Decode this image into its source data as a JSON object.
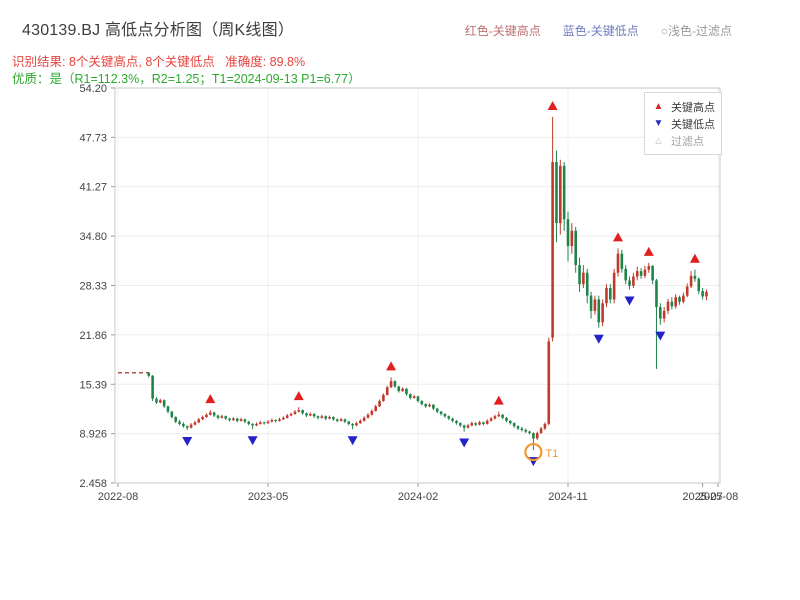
{
  "header": {
    "title": "430139.BJ 高低点分析图（周K线图）",
    "legend_inline": [
      {
        "label": "红色-关键高点",
        "color": "#bc6f6f"
      },
      {
        "label": "蓝色-关键低点",
        "color": "#6f7dbc"
      },
      {
        "label": "○浅色-过滤点",
        "color": "#9b9b9b"
      }
    ],
    "result_line": "识别结果: 8个关键高点, 8个关键低点   准确度: 89.8%",
    "result_color": "#e8433f",
    "quality_line": "优质：是（R1=112.3%，R2=1.25；T1=2024-09-13 P1=6.77）",
    "quality_color": "#2eaa2e",
    "metrics": {
      "key_high_count": 8,
      "key_low_count": 8,
      "accuracy": "89.8%",
      "R1": "112.3%",
      "R2": "1.25",
      "T1": "2024-09-13",
      "P1": "6.77"
    }
  },
  "legend_box": {
    "items": [
      {
        "label": "关键高点",
        "glyph": "▲",
        "color": "#d62728",
        "text_color": "#3c3c3c"
      },
      {
        "label": "关键低点",
        "glyph": "▼",
        "color": "#2a2ab8",
        "text_color": "#3c3c3c"
      },
      {
        "label": "过滤点",
        "glyph": "△",
        "color": "#b5b5b5",
        "text_color": "#a0a0a0"
      }
    ]
  },
  "chart_data": {
    "type": "candlestick",
    "timeframe": "weekly",
    "symbol": "430139.BJ",
    "title": "430139.BJ 高低点分析图（周K线图）",
    "y_range": [
      2.458,
      54.2
    ],
    "y_ticks": [
      {
        "v": 54.2,
        "label": "54.20"
      },
      {
        "v": 47.73,
        "label": "47.73"
      },
      {
        "v": 41.27,
        "label": "41.27"
      },
      {
        "v": 34.8,
        "label": "34.80"
      },
      {
        "v": 28.33,
        "label": "28.33"
      },
      {
        "v": 21.86,
        "label": "21.86"
      },
      {
        "v": 15.39,
        "label": "15.39"
      },
      {
        "v": 8.926,
        "label": "8.926"
      },
      {
        "v": 2.458,
        "label": "2.458"
      }
    ],
    "x_ticks": [
      {
        "week": 0,
        "label": "2022-08",
        "grid": true
      },
      {
        "week": 39,
        "label": "2023-05",
        "grid": true
      },
      {
        "week": 78,
        "label": "2024-02",
        "grid": true
      },
      {
        "week": 117,
        "label": "2024-11",
        "grid": true
      },
      {
        "week": 152,
        "label": "2025-07",
        "grid": false
      },
      {
        "week": 156,
        "label": "2025-08",
        "grid": true
      }
    ],
    "pre_listing_line": {
      "from_week": 0,
      "to_week": 8,
      "price": 16.9,
      "style": "dashed"
    },
    "candles": [
      [
        8,
        16.9,
        17.0,
        16.3,
        16.5
      ],
      [
        9,
        16.5,
        16.6,
        13.2,
        13.5
      ],
      [
        10,
        13.5,
        13.7,
        12.8,
        13.0
      ],
      [
        11,
        13.0,
        13.5,
        12.9,
        13.3
      ],
      [
        12,
        13.3,
        13.4,
        12.3,
        12.5
      ],
      [
        13,
        12.5,
        12.6,
        11.6,
        11.8
      ],
      [
        14,
        11.8,
        11.9,
        10.9,
        11.1
      ],
      [
        15,
        11.1,
        11.2,
        10.3,
        10.5
      ],
      [
        16,
        10.5,
        10.7,
        10.0,
        10.2
      ],
      [
        17,
        10.2,
        10.4,
        9.7,
        9.9
      ],
      [
        18,
        9.9,
        10.0,
        9.4,
        9.7
      ],
      [
        19,
        9.7,
        10.3,
        9.6,
        10.1
      ],
      [
        20,
        10.1,
        10.6,
        10.0,
        10.4
      ],
      [
        21,
        10.4,
        11.0,
        10.3,
        10.8
      ],
      [
        22,
        10.8,
        11.3,
        10.7,
        11.1
      ],
      [
        23,
        11.1,
        11.6,
        11.0,
        11.4
      ],
      [
        24,
        11.4,
        12.0,
        11.3,
        11.7
      ],
      [
        25,
        11.7,
        11.8,
        11.1,
        11.3
      ],
      [
        26,
        11.3,
        11.4,
        10.8,
        11.0
      ],
      [
        27,
        11.0,
        11.4,
        10.9,
        11.2
      ],
      [
        28,
        11.2,
        11.3,
        10.7,
        10.9
      ],
      [
        29,
        10.9,
        11.0,
        10.5,
        10.7
      ],
      [
        30,
        10.7,
        11.1,
        10.6,
        10.9
      ],
      [
        31,
        10.9,
        11.0,
        10.4,
        10.6
      ],
      [
        32,
        10.6,
        11.0,
        10.5,
        10.8
      ],
      [
        33,
        10.8,
        10.9,
        10.3,
        10.5
      ],
      [
        34,
        10.5,
        10.6,
        10.0,
        10.2
      ],
      [
        35,
        10.2,
        10.3,
        9.5,
        10.0
      ],
      [
        36,
        10.0,
        10.4,
        9.9,
        10.2
      ],
      [
        37,
        10.2,
        10.6,
        10.1,
        10.4
      ],
      [
        38,
        10.4,
        10.5,
        10.1,
        10.3
      ],
      [
        39,
        10.3,
        10.7,
        10.2,
        10.5
      ],
      [
        40,
        10.5,
        10.9,
        10.4,
        10.7
      ],
      [
        41,
        10.7,
        10.8,
        10.4,
        10.6
      ],
      [
        42,
        10.6,
        11.0,
        10.5,
        10.8
      ],
      [
        43,
        10.8,
        11.2,
        10.7,
        11.0
      ],
      [
        44,
        11.0,
        11.5,
        10.9,
        11.3
      ],
      [
        45,
        11.3,
        11.7,
        11.2,
        11.5
      ],
      [
        46,
        11.5,
        12.0,
        11.4,
        11.8
      ],
      [
        47,
        11.8,
        12.4,
        11.7,
        12.0
      ],
      [
        48,
        12.0,
        12.1,
        11.4,
        11.6
      ],
      [
        49,
        11.6,
        11.7,
        11.1,
        11.3
      ],
      [
        50,
        11.3,
        11.7,
        11.2,
        11.5
      ],
      [
        51,
        11.5,
        11.6,
        11.0,
        11.2
      ],
      [
        52,
        11.2,
        11.3,
        10.8,
        11.0
      ],
      [
        53,
        11.0,
        11.4,
        10.9,
        11.2
      ],
      [
        54,
        11.2,
        11.3,
        10.7,
        10.9
      ],
      [
        55,
        10.9,
        11.3,
        10.8,
        11.1
      ],
      [
        56,
        11.1,
        11.2,
        10.6,
        10.8
      ],
      [
        57,
        10.8,
        10.9,
        10.4,
        10.6
      ],
      [
        58,
        10.6,
        11.0,
        10.5,
        10.8
      ],
      [
        59,
        10.8,
        10.9,
        10.3,
        10.5
      ],
      [
        60,
        10.5,
        10.6,
        10.0,
        10.2
      ],
      [
        61,
        10.2,
        10.3,
        9.5,
        10.0
      ],
      [
        62,
        10.0,
        10.5,
        9.9,
        10.3
      ],
      [
        63,
        10.3,
        10.8,
        10.2,
        10.6
      ],
      [
        64,
        10.6,
        11.2,
        10.5,
        11.0
      ],
      [
        65,
        11.0,
        11.6,
        10.9,
        11.4
      ],
      [
        66,
        11.4,
        12.1,
        11.3,
        11.9
      ],
      [
        67,
        11.9,
        12.7,
        11.8,
        12.5
      ],
      [
        68,
        12.5,
        13.4,
        12.4,
        13.2
      ],
      [
        69,
        13.2,
        14.2,
        13.1,
        14.0
      ],
      [
        70,
        14.0,
        15.2,
        13.9,
        15.0
      ],
      [
        71,
        15.0,
        16.3,
        14.9,
        15.8
      ],
      [
        72,
        15.8,
        15.9,
        14.9,
        15.1
      ],
      [
        73,
        15.1,
        15.2,
        14.3,
        14.5
      ],
      [
        74,
        14.5,
        15.0,
        14.4,
        14.8
      ],
      [
        75,
        14.8,
        14.9,
        13.9,
        14.1
      ],
      [
        76,
        14.1,
        14.2,
        13.4,
        13.6
      ],
      [
        77,
        13.6,
        14.0,
        13.5,
        13.8
      ],
      [
        78,
        13.8,
        13.9,
        13.0,
        13.2
      ],
      [
        79,
        13.2,
        13.3,
        12.6,
        12.8
      ],
      [
        80,
        12.8,
        12.9,
        12.3,
        12.5
      ],
      [
        81,
        12.5,
        12.9,
        12.4,
        12.7
      ],
      [
        82,
        12.7,
        12.8,
        12.0,
        12.2
      ],
      [
        83,
        12.2,
        12.3,
        11.6,
        11.8
      ],
      [
        84,
        11.8,
        11.9,
        11.3,
        11.5
      ],
      [
        85,
        11.5,
        11.6,
        11.0,
        11.2
      ],
      [
        86,
        11.2,
        11.3,
        10.7,
        10.9
      ],
      [
        87,
        10.9,
        11.0,
        10.4,
        10.6
      ],
      [
        88,
        10.6,
        10.7,
        10.1,
        10.3
      ],
      [
        89,
        10.3,
        10.4,
        9.8,
        10.0
      ],
      [
        90,
        10.0,
        10.1,
        9.2,
        9.7
      ],
      [
        91,
        9.7,
        10.2,
        9.6,
        10.0
      ],
      [
        92,
        10.0,
        10.5,
        9.9,
        10.3
      ],
      [
        93,
        10.3,
        10.4,
        9.9,
        10.1
      ],
      [
        94,
        10.1,
        10.6,
        10.0,
        10.4
      ],
      [
        95,
        10.4,
        10.5,
        10.0,
        10.2
      ],
      [
        96,
        10.2,
        10.8,
        10.1,
        10.6
      ],
      [
        97,
        10.6,
        11.1,
        10.5,
        10.9
      ],
      [
        98,
        10.9,
        11.4,
        10.8,
        11.2
      ],
      [
        99,
        11.2,
        11.8,
        11.1,
        11.4
      ],
      [
        100,
        11.4,
        11.5,
        10.8,
        11.0
      ],
      [
        101,
        11.0,
        11.1,
        10.4,
        10.6
      ],
      [
        102,
        10.6,
        10.7,
        10.1,
        10.3
      ],
      [
        103,
        10.3,
        10.4,
        9.7,
        9.9
      ],
      [
        104,
        9.9,
        10.0,
        9.4,
        9.6
      ],
      [
        105,
        9.6,
        9.8,
        9.2,
        9.4
      ],
      [
        106,
        9.4,
        9.6,
        9.0,
        9.2
      ],
      [
        107,
        9.2,
        9.3,
        8.8,
        9.0
      ],
      [
        108,
        9.0,
        9.1,
        6.77,
        8.3
      ],
      [
        109,
        8.3,
        9.2,
        8.1,
        9.0
      ],
      [
        110,
        9.0,
        9.8,
        8.9,
        9.6
      ],
      [
        111,
        9.6,
        10.4,
        9.4,
        10.2
      ],
      [
        112,
        10.2,
        21.5,
        10.0,
        21.0
      ],
      [
        113,
        21.5,
        50.4,
        21.0,
        44.5
      ],
      [
        114,
        44.5,
        46.0,
        34.0,
        36.5
      ],
      [
        115,
        36.5,
        44.8,
        35.0,
        44.0
      ],
      [
        116,
        44.0,
        44.5,
        35.5,
        37.0
      ],
      [
        117,
        37.0,
        38.0,
        31.5,
        33.5
      ],
      [
        118,
        33.5,
        36.5,
        32.5,
        35.5
      ],
      [
        119,
        35.5,
        36.0,
        30.0,
        31.0
      ],
      [
        120,
        31.0,
        32.0,
        27.5,
        28.5
      ],
      [
        121,
        28.5,
        31.0,
        28.0,
        30.0
      ],
      [
        122,
        30.0,
        30.5,
        26.0,
        27.0
      ],
      [
        123,
        27.0,
        27.5,
        24.0,
        25.0
      ],
      [
        124,
        25.0,
        27.0,
        24.5,
        26.5
      ],
      [
        125,
        26.5,
        27.0,
        22.8,
        23.5
      ],
      [
        126,
        23.5,
        26.5,
        23.0,
        26.0
      ],
      [
        127,
        26.0,
        28.5,
        25.5,
        28.0
      ],
      [
        128,
        28.0,
        28.5,
        26.0,
        26.5
      ],
      [
        129,
        26.5,
        30.5,
        26.0,
        30.0
      ],
      [
        130,
        30.0,
        33.2,
        29.5,
        32.5
      ],
      [
        131,
        32.5,
        33.0,
        30.0,
        30.5
      ],
      [
        132,
        30.5,
        31.0,
        28.5,
        29.0
      ],
      [
        133,
        29.0,
        29.5,
        27.8,
        28.3
      ],
      [
        134,
        28.3,
        30.0,
        28.0,
        29.5
      ],
      [
        135,
        29.5,
        30.8,
        29.0,
        30.2
      ],
      [
        136,
        30.2,
        30.6,
        29.2,
        29.6
      ],
      [
        137,
        29.6,
        30.9,
        29.3,
        30.4
      ],
      [
        138,
        30.4,
        31.3,
        30.0,
        30.9
      ],
      [
        139,
        30.9,
        31.0,
        28.5,
        29.0
      ],
      [
        140,
        29.0,
        29.2,
        17.4,
        25.5
      ],
      [
        141,
        25.5,
        26.0,
        23.2,
        24.0
      ],
      [
        142,
        24.0,
        25.5,
        23.5,
        25.0
      ],
      [
        143,
        25.0,
        26.6,
        24.6,
        26.2
      ],
      [
        144,
        26.2,
        26.8,
        25.2,
        25.6
      ],
      [
        145,
        25.6,
        27.2,
        25.3,
        26.8
      ],
      [
        146,
        26.8,
        27.0,
        25.8,
        26.2
      ],
      [
        147,
        26.2,
        27.4,
        26.0,
        27.0
      ],
      [
        148,
        27.0,
        28.6,
        26.8,
        28.2
      ],
      [
        149,
        28.2,
        30.2,
        28.0,
        29.6
      ],
      [
        150,
        29.6,
        30.4,
        28.8,
        29.2
      ],
      [
        151,
        29.2,
        29.4,
        27.2,
        27.6
      ],
      [
        152,
        27.6,
        28.0,
        26.5,
        26.9
      ],
      [
        153,
        26.9,
        27.8,
        26.4,
        27.5
      ]
    ],
    "key_highs": [
      {
        "week": 24,
        "price": 12.0
      },
      {
        "week": 47,
        "price": 12.4
      },
      {
        "week": 71,
        "price": 16.3
      },
      {
        "week": 99,
        "price": 11.8
      },
      {
        "week": 113,
        "price": 50.4
      },
      {
        "week": 130,
        "price": 33.2
      },
      {
        "week": 138,
        "price": 31.3
      },
      {
        "week": 150,
        "price": 30.4
      }
    ],
    "key_lows": [
      {
        "week": 18,
        "price": 9.4
      },
      {
        "week": 35,
        "price": 9.5
      },
      {
        "week": 61,
        "price": 9.5
      },
      {
        "week": 90,
        "price": 9.2
      },
      {
        "week": 108,
        "price": 6.77
      },
      {
        "week": 125,
        "price": 22.8
      },
      {
        "week": 133,
        "price": 27.8
      },
      {
        "week": 141,
        "price": 23.2
      }
    ],
    "filtered_points": [],
    "annotation": {
      "label": "T1",
      "week": 108,
      "value": 6.77,
      "date": "2024-09-13",
      "color": "#f09a2d"
    },
    "colors": {
      "up": "#c0392b",
      "down": "#1e8449",
      "key_high": "#e02020",
      "key_low": "#2323c8",
      "pre_line": "#b5524e",
      "grid": "#ececec",
      "grid_v": "#f0f0f0",
      "axis_text": "#444444",
      "border": "#c4c4c4"
    }
  }
}
